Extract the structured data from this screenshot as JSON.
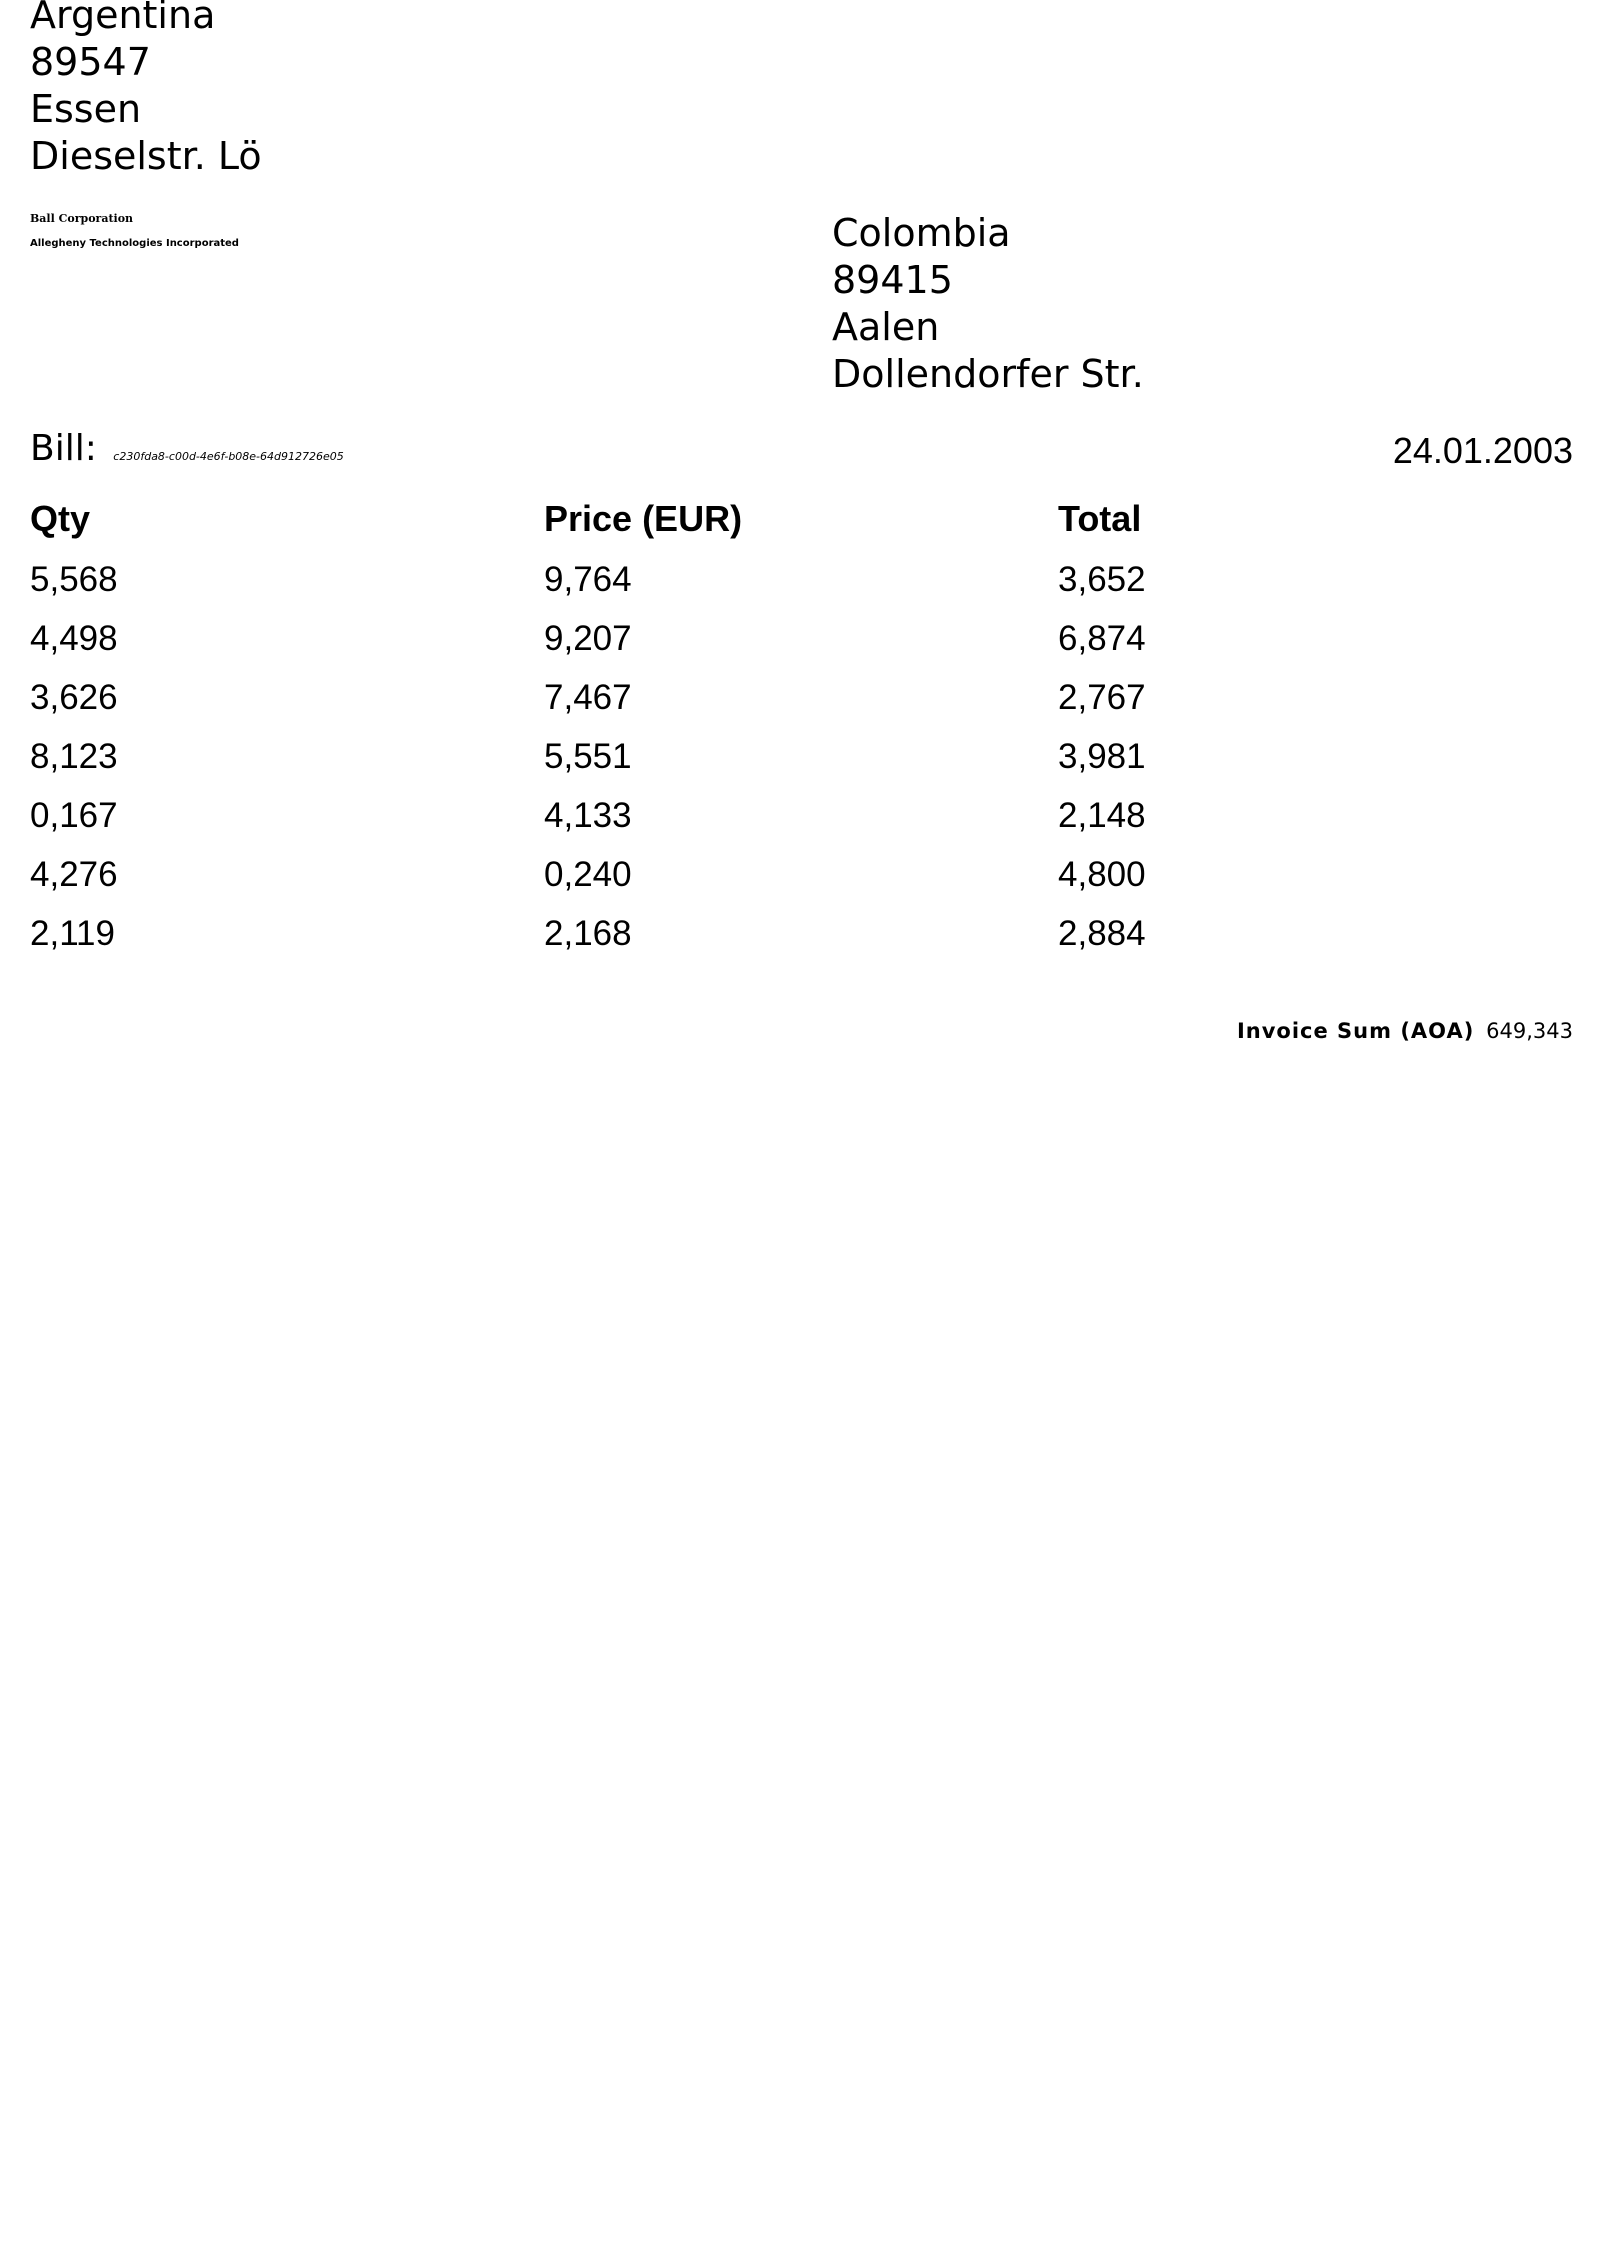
{
  "sender": {
    "country": "Argentina",
    "postal_code": "89547",
    "city": "Essen",
    "street": "Dieselstr. Lö"
  },
  "companies": {
    "line1": "Ball Corporation",
    "line2": "Allegheny Technologies Incorporated"
  },
  "recipient": {
    "country": "Colombia",
    "postal_code": "89415",
    "city": "Aalen",
    "street": "Dollendorfer Str."
  },
  "bill": {
    "label": "Bill:",
    "id": "c230fda8-c00d-4e6f-b08e-64d912726e05",
    "date": "24.01.2003"
  },
  "table": {
    "headers": [
      "Qty",
      "Price (EUR)",
      "Total"
    ],
    "rows": [
      [
        "5,568",
        "9,764",
        "3,652"
      ],
      [
        "4,498",
        "9,207",
        "6,874"
      ],
      [
        "3,626",
        "7,467",
        "2,767"
      ],
      [
        "8,123",
        "5,551",
        "3,981"
      ],
      [
        "0,167",
        "4,133",
        "2,148"
      ],
      [
        "4,276",
        "0,240",
        "4,800"
      ],
      [
        "2,119",
        "2,168",
        "2,884"
      ]
    ]
  },
  "summary": {
    "label": "Invoice Sum (AOA)",
    "value": "649,343"
  }
}
